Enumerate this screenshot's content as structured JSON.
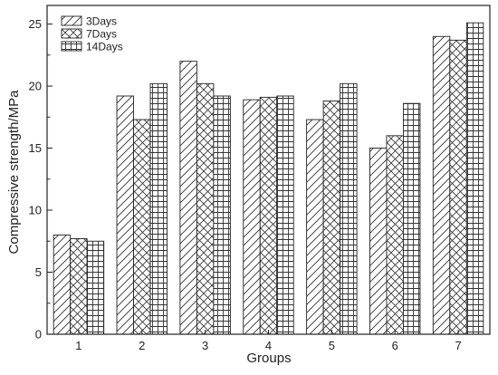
{
  "chart_data": {
    "type": "bar",
    "xlabel": "Groups",
    "ylabel": "Compressive strength/MPa",
    "categories": [
      "1",
      "2",
      "3",
      "4",
      "5",
      "6",
      "7"
    ],
    "ylim": [
      0,
      26.5
    ],
    "yticks": [
      0,
      5,
      10,
      15,
      20,
      25
    ],
    "grid": false,
    "legend_position": "top-left",
    "series": [
      {
        "name": "3Days",
        "pattern": "diagonal-hatch",
        "values": [
          8.0,
          19.2,
          22.0,
          18.9,
          17.3,
          15.0,
          24.0
        ]
      },
      {
        "name": "7Days",
        "pattern": "cross-hatch",
        "values": [
          7.7,
          17.3,
          20.2,
          19.1,
          18.8,
          16.0,
          23.7
        ]
      },
      {
        "name": "14Days",
        "pattern": "grid-hatch",
        "values": [
          7.5,
          20.2,
          19.2,
          19.2,
          20.2,
          18.6,
          25.1
        ]
      }
    ]
  }
}
